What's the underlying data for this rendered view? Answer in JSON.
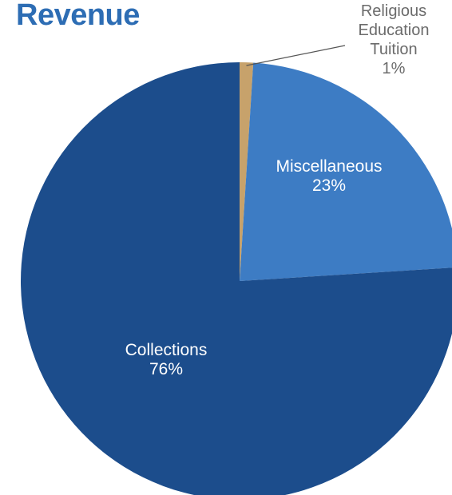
{
  "chart_data": {
    "type": "pie",
    "title": "Revenue",
    "slices": [
      {
        "label": "Religious Education Tuition",
        "label_lines": [
          "Religious",
          "Education",
          "Tuition"
        ],
        "value_text": "1%",
        "value": 1,
        "color": "#c7a26b",
        "label_placement": "outside-callout"
      },
      {
        "label": "Miscellaneous",
        "label_lines": [
          "Miscellaneous"
        ],
        "value_text": "23%",
        "value": 23,
        "color": "#3d7cc4",
        "label_placement": "inside"
      },
      {
        "label": "Collections",
        "label_lines": [
          "Collections"
        ],
        "value_text": "76%",
        "value": 76,
        "color": "#1c4d8c",
        "label_placement": "inside"
      }
    ],
    "start_angle": "12 o'clock",
    "direction": "clockwise",
    "legend": "none"
  }
}
